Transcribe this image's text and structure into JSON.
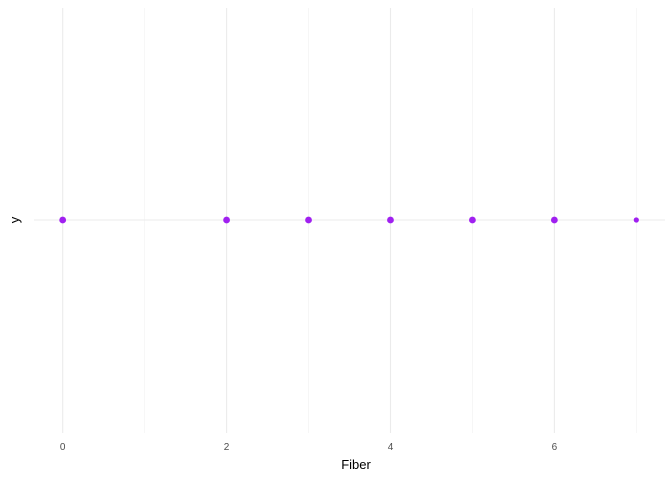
{
  "chart_data": {
    "type": "scatter",
    "title": "",
    "xlabel": "Fiber",
    "ylabel": "y",
    "xlim": [
      -0.35,
      7.35
    ],
    "x_ticks": [
      0,
      2,
      4,
      6
    ],
    "x_ticks_display": [
      "0",
      "2",
      "4",
      "6"
    ],
    "x_minor_gridlines": [
      1,
      3,
      5,
      7
    ],
    "y_ticks": [],
    "grid": true,
    "legend": "none",
    "point_color": "#A020F0",
    "series": [
      {
        "points": [
          {
            "x": 0,
            "y": 0
          },
          {
            "x": 2,
            "y": 0
          },
          {
            "x": 3,
            "y": 0
          },
          {
            "x": 4,
            "y": 0
          },
          {
            "x": 5,
            "y": 0
          },
          {
            "x": 6,
            "y": 0
          },
          {
            "x": 7,
            "y": 0
          }
        ]
      }
    ]
  }
}
